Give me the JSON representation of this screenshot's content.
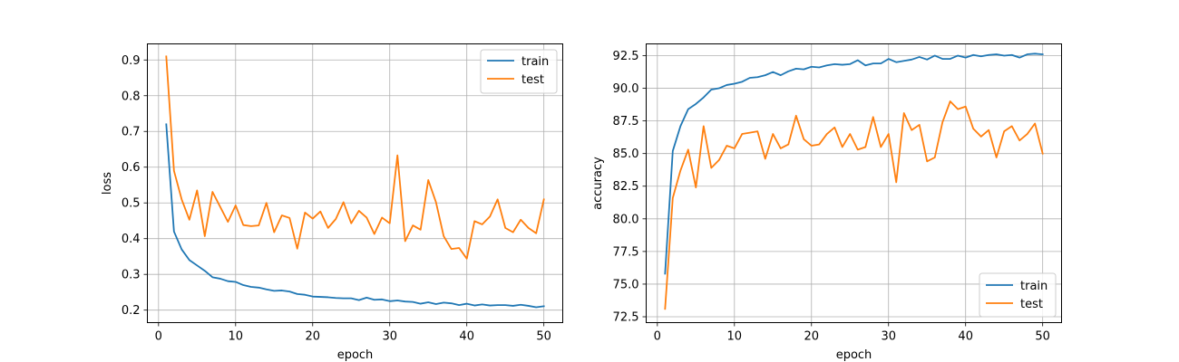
{
  "chart_data": [
    {
      "type": "line",
      "xlabel": "epoch",
      "ylabel": "loss",
      "xlim": [
        -1.45,
        52.45
      ],
      "ylim": [
        0.165,
        0.945
      ],
      "xticks": [
        0,
        10,
        20,
        30,
        40,
        50
      ],
      "yticks": [
        0.2,
        0.3,
        0.4,
        0.5,
        0.6,
        0.7,
        0.8,
        0.9
      ],
      "ytick_labels": [
        "0.2",
        "0.3",
        "0.4",
        "0.5",
        "0.6",
        "0.7",
        "0.8",
        "0.9"
      ],
      "grid": true,
      "legend": "top-right",
      "x": [
        1,
        2,
        3,
        4,
        5,
        6,
        7,
        8,
        9,
        10,
        11,
        12,
        13,
        14,
        15,
        16,
        17,
        18,
        19,
        20,
        21,
        22,
        23,
        24,
        25,
        26,
        27,
        28,
        29,
        30,
        31,
        32,
        33,
        34,
        35,
        36,
        37,
        38,
        39,
        40,
        41,
        42,
        43,
        44,
        45,
        46,
        47,
        48,
        49,
        50
      ],
      "series": [
        {
          "name": "train",
          "color": "#1f77b4",
          "values": [
            0.72,
            0.42,
            0.37,
            0.34,
            0.325,
            0.31,
            0.292,
            0.288,
            0.281,
            0.279,
            0.27,
            0.265,
            0.263,
            0.258,
            0.254,
            0.255,
            0.252,
            0.245,
            0.243,
            0.238,
            0.237,
            0.236,
            0.234,
            0.233,
            0.233,
            0.228,
            0.235,
            0.229,
            0.23,
            0.225,
            0.227,
            0.224,
            0.223,
            0.218,
            0.222,
            0.217,
            0.221,
            0.219,
            0.214,
            0.218,
            0.213,
            0.216,
            0.213,
            0.214,
            0.214,
            0.212,
            0.215,
            0.212,
            0.208,
            0.211
          ]
        },
        {
          "name": "test",
          "color": "#ff7f0e",
          "values": [
            0.91,
            0.59,
            0.51,
            0.453,
            0.535,
            0.407,
            0.531,
            0.489,
            0.447,
            0.493,
            0.438,
            0.435,
            0.437,
            0.5,
            0.418,
            0.465,
            0.458,
            0.372,
            0.473,
            0.456,
            0.476,
            0.43,
            0.455,
            0.502,
            0.443,
            0.478,
            0.459,
            0.413,
            0.459,
            0.443,
            0.633,
            0.393,
            0.437,
            0.425,
            0.564,
            0.502,
            0.407,
            0.371,
            0.374,
            0.344,
            0.449,
            0.44,
            0.462,
            0.51,
            0.43,
            0.418,
            0.453,
            0.43,
            0.415,
            0.51
          ]
        }
      ]
    },
    {
      "type": "line",
      "xlabel": "epoch",
      "ylabel": "accuracy",
      "xlim": [
        -1.45,
        52.45
      ],
      "ylim": [
        72.05,
        93.4
      ],
      "xticks": [
        0,
        10,
        20,
        30,
        40,
        50
      ],
      "yticks": [
        72.5,
        75.0,
        77.5,
        80.0,
        82.5,
        85.0,
        87.5,
        90.0,
        92.5
      ],
      "ytick_labels": [
        "72.5",
        "75.0",
        "77.5",
        "80.0",
        "82.5",
        "85.0",
        "87.5",
        "90.0",
        "92.5"
      ],
      "grid": true,
      "legend": "bottom-right",
      "x": [
        1,
        2,
        3,
        4,
        5,
        6,
        7,
        8,
        9,
        10,
        11,
        12,
        13,
        14,
        15,
        16,
        17,
        18,
        19,
        20,
        21,
        22,
        23,
        24,
        25,
        26,
        27,
        28,
        29,
        30,
        31,
        32,
        33,
        34,
        35,
        36,
        37,
        38,
        39,
        40,
        41,
        42,
        43,
        44,
        45,
        46,
        47,
        48,
        49,
        50
      ],
      "series": [
        {
          "name": "train",
          "color": "#1f77b4",
          "values": [
            75.8,
            85.2,
            87.1,
            88.4,
            88.8,
            89.3,
            89.9,
            90.0,
            90.25,
            90.35,
            90.5,
            90.8,
            90.85,
            91.0,
            91.25,
            91.0,
            91.3,
            91.5,
            91.45,
            91.65,
            91.6,
            91.75,
            91.85,
            91.8,
            91.85,
            92.15,
            91.75,
            91.9,
            91.9,
            92.25,
            92.0,
            92.1,
            92.2,
            92.4,
            92.2,
            92.5,
            92.25,
            92.25,
            92.5,
            92.35,
            92.55,
            92.45,
            92.55,
            92.6,
            92.5,
            92.55,
            92.35,
            92.6,
            92.65,
            92.6
          ]
        },
        {
          "name": "test",
          "color": "#ff7f0e",
          "values": [
            73.1,
            81.6,
            83.7,
            85.3,
            82.4,
            87.1,
            83.9,
            84.5,
            85.6,
            85.4,
            86.5,
            86.6,
            86.7,
            84.6,
            86.5,
            85.4,
            85.7,
            87.9,
            86.1,
            85.6,
            85.7,
            86.5,
            87.0,
            85.5,
            86.5,
            85.3,
            85.5,
            87.8,
            85.5,
            86.5,
            82.8,
            88.1,
            86.8,
            87.2,
            84.4,
            84.7,
            87.4,
            89.0,
            88.4,
            88.6,
            86.9,
            86.3,
            86.8,
            84.7,
            86.7,
            87.1,
            86.0,
            86.5,
            87.3,
            85.0
          ]
        }
      ]
    }
  ]
}
